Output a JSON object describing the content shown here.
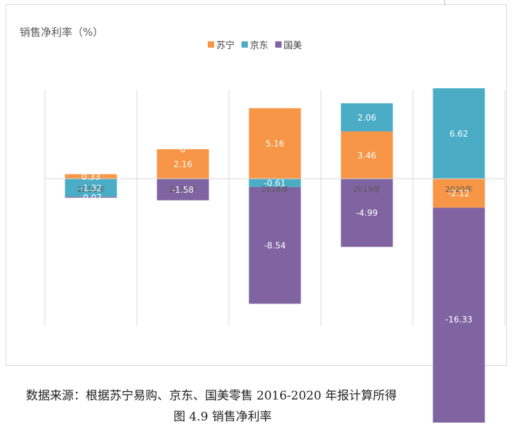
{
  "chart_data": {
    "type": "bar",
    "stacked": true,
    "title": "销售净利率（%）",
    "categories": [
      "2016年",
      "2017年",
      "2018年",
      "2019年",
      "2020年"
    ],
    "series": [
      {
        "name": "苏宁",
        "color": "#F79646",
        "values": [
          0.33,
          2.16,
          5.16,
          3.46,
          -2.12
        ]
      },
      {
        "name": "京东",
        "color": "#4BACC6",
        "values": [
          -1.32,
          0,
          -0.61,
          2.06,
          6.62
        ]
      },
      {
        "name": "国美",
        "color": "#8064A2",
        "values": [
          -0.07,
          -1.58,
          -8.54,
          -4.99,
          -16.33
        ]
      }
    ],
    "data_labels": [
      [
        "0.33",
        "2.16",
        "5.16",
        "3.46",
        "-2.12"
      ],
      [
        "-1.32",
        "0",
        "-0.61",
        "2.06",
        "6.62"
      ],
      [
        "-0.07",
        "-1.58",
        "-8.54",
        "-4.99",
        "-16.33"
      ]
    ],
    "legend_position": "top",
    "grid": "vertical"
  },
  "footer": {
    "source": "数据来源：根据苏宁易购、京东、国美零售 2016-2020 年报计算所得",
    "caption": "图 4.9 销售净利率"
  }
}
